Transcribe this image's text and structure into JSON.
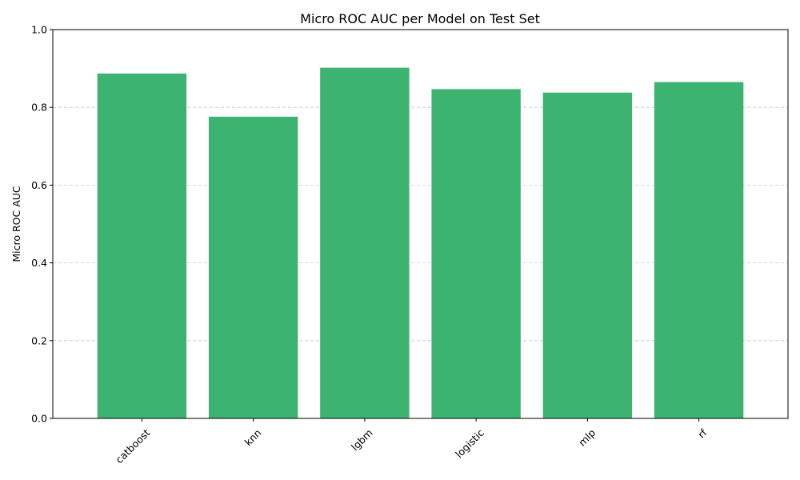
{
  "chart_data": {
    "type": "bar",
    "title": "Micro ROC AUC per Model on Test Set",
    "xlabel": "",
    "ylabel": "Micro ROC AUC",
    "categories": [
      "catboost",
      "knn",
      "lgbm",
      "logistic",
      "mlp",
      "rf"
    ],
    "values": [
      0.887,
      0.776,
      0.902,
      0.847,
      0.838,
      0.865
    ],
    "ylim": [
      0,
      1.0
    ],
    "yticks": [
      "0.0",
      "0.2",
      "0.4",
      "0.6",
      "0.8",
      "1.0"
    ],
    "grid": "y-dashed",
    "bar_color": "#3cb371",
    "x_tick_rotation": "45"
  }
}
